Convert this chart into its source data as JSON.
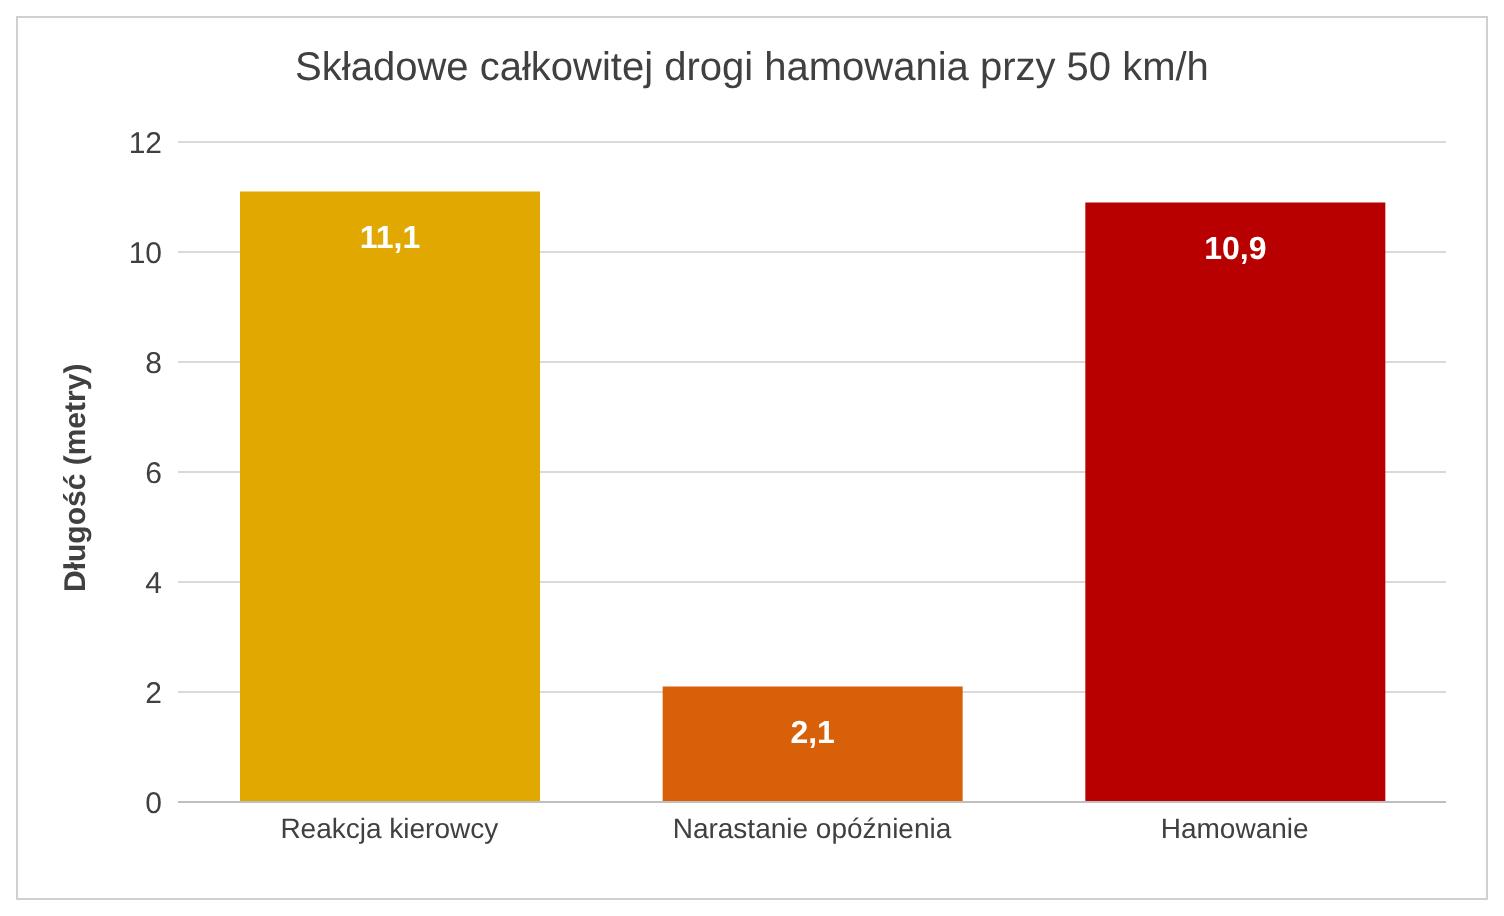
{
  "chart_data": {
    "type": "bar",
    "title": "Składowe całkowitej drogi hamowania przy 50 km/h",
    "ylabel": "Długość (metry)",
    "categories": [
      "Reakcja kierowcy",
      "Narastanie opóźnienia",
      "Hamowanie"
    ],
    "values": [
      11.1,
      2.1,
      10.9
    ],
    "value_labels": [
      "11,1",
      "2,1",
      "10,9"
    ],
    "colors": [
      "#e0a800",
      "#d86008",
      "#b80000"
    ],
    "ylim": [
      0,
      12
    ],
    "yticks": [
      0,
      2,
      4,
      6,
      8,
      10,
      12
    ],
    "grid": "y"
  }
}
